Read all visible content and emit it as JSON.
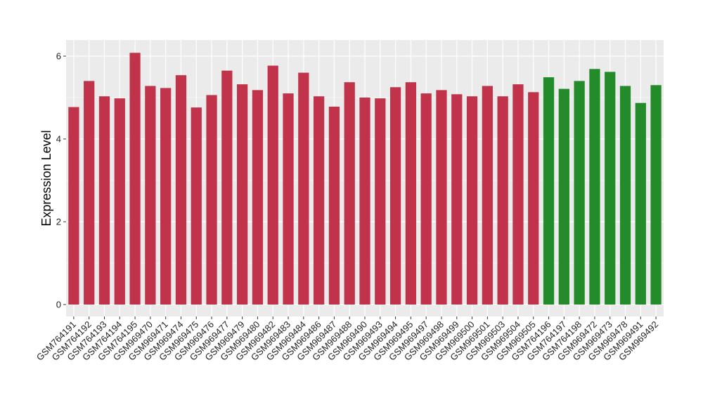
{
  "chart_data": {
    "type": "bar",
    "title": "",
    "xlabel": "",
    "ylabel": "Expression Level",
    "ylim": [
      0,
      6.3
    ],
    "yticks": [
      0,
      2,
      4,
      6
    ],
    "grid": true,
    "categories": [
      "GSM764191",
      "GSM764192",
      "GSM764193",
      "GSM764194",
      "GSM764195",
      "GSM969470",
      "GSM969471",
      "GSM969474",
      "GSM969475",
      "GSM969476",
      "GSM969477",
      "GSM969479",
      "GSM969480",
      "GSM969482",
      "GSM969483",
      "GSM969484",
      "GSM969486",
      "GSM969487",
      "GSM969488",
      "GSM969490",
      "GSM969493",
      "GSM969494",
      "GSM969495",
      "GSM969497",
      "GSM969498",
      "GSM969499",
      "GSM969500",
      "GSM969501",
      "GSM969503",
      "GSM969504",
      "GSM969505",
      "GSM764196",
      "GSM764197",
      "GSM764198",
      "GSM969472",
      "GSM969473",
      "GSM969478",
      "GSM969491",
      "GSM969492"
    ],
    "values": [
      4.77,
      5.4,
      5.03,
      4.98,
      6.08,
      5.28,
      5.23,
      5.54,
      4.76,
      5.06,
      5.65,
      5.32,
      5.18,
      5.77,
      5.1,
      5.6,
      5.03,
      4.78,
      5.37,
      5.0,
      4.98,
      5.25,
      5.37,
      5.1,
      5.18,
      5.08,
      5.03,
      5.28,
      5.03,
      5.32,
      5.13,
      5.49,
      5.21,
      5.4,
      5.69,
      5.62,
      5.28,
      4.87,
      5.3
    ],
    "groups": [
      "a",
      "a",
      "a",
      "a",
      "a",
      "a",
      "a",
      "a",
      "a",
      "a",
      "a",
      "a",
      "a",
      "a",
      "a",
      "a",
      "a",
      "a",
      "a",
      "a",
      "a",
      "a",
      "a",
      "a",
      "a",
      "a",
      "a",
      "a",
      "a",
      "a",
      "a",
      "b",
      "b",
      "b",
      "b",
      "b",
      "b",
      "b",
      "b"
    ],
    "group_colors": {
      "a": "#c1334a",
      "b": "#238b2a"
    },
    "panel_color": "#ebebeb",
    "grid_color": "#ffffff"
  }
}
